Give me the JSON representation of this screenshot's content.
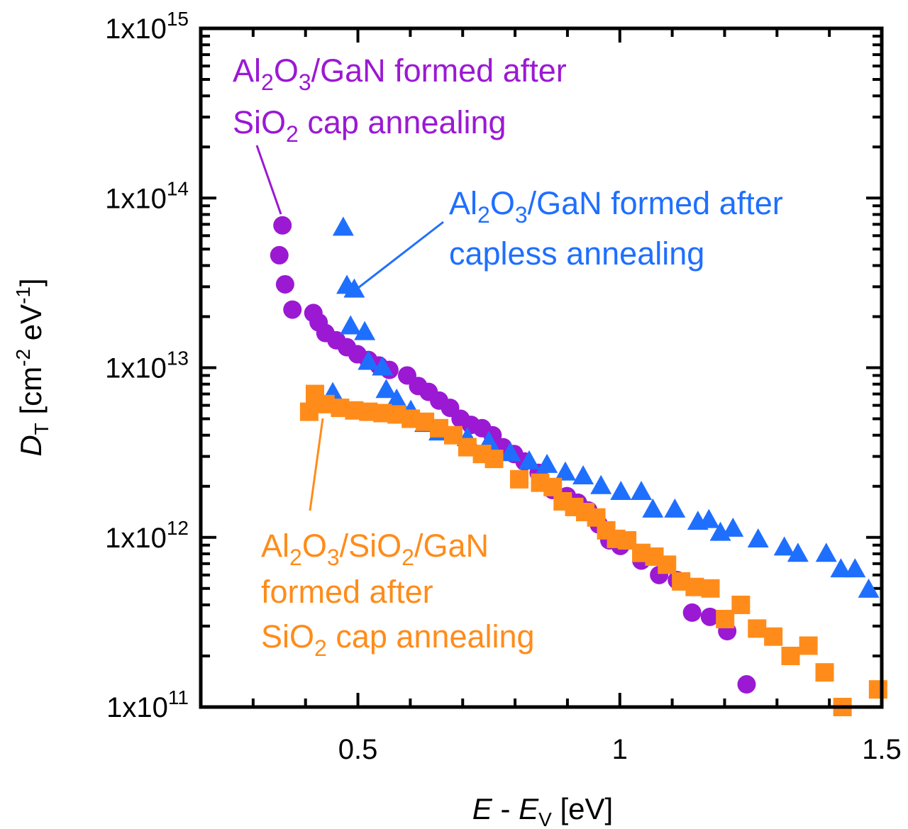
{
  "chart_data": {
    "type": "scatter",
    "x_scale": "linear",
    "y_scale": "log",
    "xlim": [
      0.2,
      1.5
    ],
    "ylim": [
      100000000000.0,
      1000000000000000.0
    ],
    "grid": false,
    "xlabel": {
      "main": "E",
      "sep": " - ",
      "var": "E",
      "sub": "V",
      "unit": " [eV]"
    },
    "ylabel": {
      "main": "D",
      "sub": "T",
      "unit_a": " [cm",
      "sup_a": "-2",
      "unit_b": " eV",
      "sup_b": "-1",
      "unit_c": "]"
    },
    "x_ticks": [
      {
        "value": 0.5,
        "label": "0.5"
      },
      {
        "value": 1.0,
        "label": "1"
      },
      {
        "value": 1.5,
        "label": "1.5"
      }
    ],
    "y_ticks": [
      {
        "value": 1000000000000000.0,
        "base": "1x10",
        "exp": "15"
      },
      {
        "value": 100000000000000.0,
        "base": "1x10",
        "exp": "14"
      },
      {
        "value": 10000000000000.0,
        "base": "1x10",
        "exp": "13"
      },
      {
        "value": 1000000000000.0,
        "base": "1x10",
        "exp": "12"
      },
      {
        "value": 100000000000.0,
        "base": "1x10",
        "exp": "11"
      }
    ],
    "series": [
      {
        "marker": "circle",
        "color": "#9B19D3",
        "x": [
          0.356,
          0.35,
          0.361,
          0.375,
          0.415,
          0.425,
          0.438,
          0.459,
          0.479,
          0.499,
          0.52,
          0.54,
          0.56,
          0.594,
          0.615,
          0.635,
          0.655,
          0.676,
          0.696,
          0.716,
          0.737,
          0.757,
          0.777,
          0.798,
          0.818,
          0.845,
          0.872,
          0.899,
          0.92,
          0.94,
          0.96,
          0.98,
          1.001,
          1.041,
          1.075,
          1.109,
          1.138,
          1.172,
          1.205,
          1.242
        ],
        "y": [
          69000000000000.0,
          46000000000000.0,
          31000000000000.0,
          22000000000000.0,
          21000000000000.0,
          18500000000000.0,
          16000000000000.0,
          14500000000000.0,
          13200000000000.0,
          12000000000000.0,
          11100000000000.0,
          10300000000000.0,
          9700000000000.0,
          9000000000000.0,
          7800000000000.0,
          7200000000000.0,
          6400000000000.0,
          5800000000000.0,
          5000000000000.0,
          4600000000000.0,
          4400000000000.0,
          4000000000000.0,
          3400000000000.0,
          3100000000000.0,
          2800000000000.0,
          2400000000000.0,
          1900000000000.0,
          1750000000000.0,
          1600000000000.0,
          1440000000000.0,
          1190000000000.0,
          960000000000.0,
          890000000000.0,
          730000000000.0,
          600000000000.0,
          560000000000.0,
          360000000000.0,
          340000000000.0,
          280000000000.0,
          136000000000.0
        ]
      },
      {
        "marker": "triangle",
        "color": "#1F6FFF",
        "x": [
          0.472,
          0.479,
          0.493,
          0.486,
          0.513,
          0.52,
          0.547,
          0.554,
          0.452,
          0.574,
          0.601,
          0.628,
          0.655,
          0.709,
          0.75,
          0.791,
          0.827,
          0.861,
          0.896,
          0.93,
          0.964,
          1.002,
          1.041,
          1.063,
          1.105,
          1.149,
          1.17,
          1.192,
          1.216,
          1.264,
          1.314,
          1.34,
          1.394,
          1.422,
          1.449,
          1.475
        ],
        "y": [
          66000000000000.0,
          30000000000000.0,
          28500000000000.0,
          17300000000000.0,
          16000000000000.0,
          10700000000000.0,
          9900000000000.0,
          7300000000000.0,
          7000000000000.0,
          6400000000000.0,
          5500000000000.0,
          4600000000000.0,
          4100000000000.0,
          3800000000000.0,
          3600000000000.0,
          3100000000000.0,
          2770000000000.0,
          2640000000000.0,
          2380000000000.0,
          2260000000000.0,
          1980000000000.0,
          1830000000000.0,
          1830000000000.0,
          1440000000000.0,
          1440000000000.0,
          1220000000000.0,
          1250000000000.0,
          1050000000000.0,
          1110000000000.0,
          960000000000.0,
          860000000000.0,
          790000000000.0,
          790000000000.0,
          640000000000.0,
          640000000000.0,
          485000000000.0
        ]
      },
      {
        "marker": "square",
        "color": "#FF8C1A",
        "x": [
          0.407,
          0.418,
          0.438,
          0.466,
          0.493,
          0.52,
          0.547,
          0.574,
          0.601,
          0.628,
          0.655,
          0.682,
          0.709,
          0.737,
          0.76,
          0.808,
          0.848,
          0.872,
          0.891,
          0.913,
          0.934,
          0.955,
          0.974,
          0.993,
          1.014,
          1.041,
          1.066,
          1.09,
          1.117,
          1.143,
          1.173,
          1.201,
          1.231,
          1.262,
          1.293,
          1.326,
          1.36,
          1.391,
          1.425,
          1.493
        ],
        "y": [
          5500000000000.0,
          7000000000000.0,
          6100000000000.0,
          5800000000000.0,
          5600000000000.0,
          5500000000000.0,
          5400000000000.0,
          5300000000000.0,
          5000000000000.0,
          4800000000000.0,
          4400000000000.0,
          4000000000000.0,
          3400000000000.0,
          3100000000000.0,
          2900000000000.0,
          2200000000000.0,
          2100000000000.0,
          1980000000000.0,
          1630000000000.0,
          1510000000000.0,
          1410000000000.0,
          1310000000000.0,
          1100000000000.0,
          980000000000.0,
          960000000000.0,
          810000000000.0,
          770000000000.0,
          690000000000.0,
          550000000000.0,
          510000000000.0,
          500000000000.0,
          330000000000.0,
          400000000000.0,
          290000000000.0,
          260000000000.0,
          200000000000.0,
          230000000000.0,
          160000000000.0,
          100000000000.0,
          127000000000.0
        ]
      }
    ],
    "annotations": [
      {
        "color": "#9B19D3",
        "lines": [
          [
            {
              "t": "Al"
            },
            {
              "sub": "2"
            },
            {
              "t": "O"
            },
            {
              "sub": "3"
            },
            {
              "t": "/GaN formed after"
            }
          ],
          [
            {
              "t": "SiO"
            },
            {
              "sub": "2"
            },
            {
              "t": " cap annealing"
            }
          ]
        ]
      },
      {
        "color": "#1F6FFF",
        "lines": [
          [
            {
              "t": "Al"
            },
            {
              "sub": "2"
            },
            {
              "t": "O"
            },
            {
              "sub": "3"
            },
            {
              "t": "/GaN formed after"
            }
          ],
          [
            {
              "t": "capless annealing"
            }
          ]
        ]
      },
      {
        "color": "#FF8C1A",
        "lines": [
          [
            {
              "t": "Al"
            },
            {
              "sub": "2"
            },
            {
              "t": "O"
            },
            {
              "sub": "3"
            },
            {
              "t": "/SiO"
            },
            {
              "sub": "2"
            },
            {
              "t": "/GaN"
            }
          ],
          [
            {
              "t": "formed after"
            }
          ],
          [
            {
              "t": "SiO"
            },
            {
              "sub": "2"
            },
            {
              "t": " cap annealing"
            }
          ]
        ]
      }
    ]
  }
}
